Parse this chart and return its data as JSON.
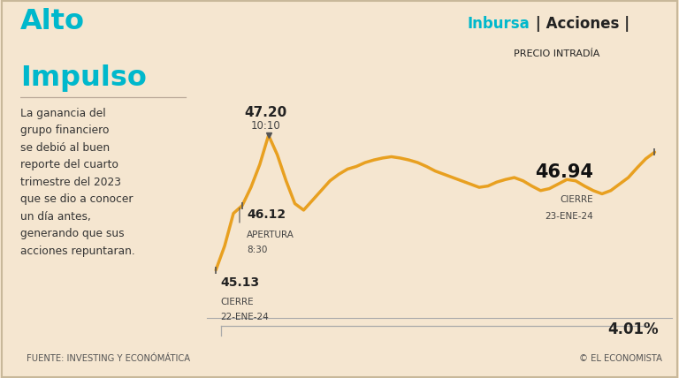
{
  "bg_color": "#f5e6d0",
  "line_color": "#e8a020",
  "line_width": 2.5,
  "left_bar_color": "#d4781a",
  "title_line1": "Alto",
  "title_line2": "Impulso",
  "title_color": "#00b8cc",
  "body_text": "La ganancia del\ngrupo financiero\nse debió al buen\nreporte del cuarto\ntrimestre del 2023\nque se dio a conocer\nun día antes,\ngenerando que sus\nacciones repuntaran.",
  "body_color": "#333333",
  "header_inbursa": "Inbursa",
  "header_rest": " | Acciones |",
  "header_subtitle": "PRECIO INTRADÍA",
  "header_color_inbursa": "#00b8cc",
  "header_color_rest": "#222222",
  "label_max_price": "47.20",
  "label_max_time": "10:10",
  "label_open_price": "46.12",
  "label_open_label": "APERTURA",
  "label_open_time": "8:30",
  "label_prev_price": "45.13",
  "label_prev_label": "CIERRE",
  "label_prev_date": "22-ENE-24",
  "label_close_price": "46.94",
  "label_close_label": "CIERRE",
  "label_close_date": "23-ENE-24",
  "pct_change": "4.01%",
  "source_text": "FUENTE: INVESTING Y ECONÓMÁTICA",
  "economist_text": "EL ECONOMISTA",
  "x_values": [
    0,
    1,
    2,
    3,
    4,
    5,
    6,
    7,
    8,
    9,
    10,
    11,
    12,
    13,
    14,
    15,
    16,
    17,
    18,
    19,
    20,
    21,
    22,
    23,
    24,
    25,
    26,
    27,
    28,
    29,
    30,
    31,
    32,
    33,
    34,
    35,
    36,
    37,
    38,
    39,
    40,
    41,
    42,
    43,
    44,
    45,
    46,
    47,
    48,
    49,
    50
  ],
  "y_values": [
    45.13,
    45.5,
    46.0,
    46.12,
    46.4,
    46.75,
    47.2,
    46.9,
    46.5,
    46.15,
    46.05,
    46.2,
    46.35,
    46.5,
    46.6,
    46.68,
    46.72,
    46.78,
    46.82,
    46.85,
    46.87,
    46.85,
    46.82,
    46.78,
    46.72,
    46.65,
    46.6,
    46.55,
    46.5,
    46.45,
    46.4,
    46.42,
    46.48,
    46.52,
    46.55,
    46.5,
    46.42,
    46.35,
    46.38,
    46.45,
    46.52,
    46.5,
    46.42,
    46.35,
    46.3,
    46.35,
    46.45,
    46.55,
    46.7,
    46.84,
    46.94
  ]
}
